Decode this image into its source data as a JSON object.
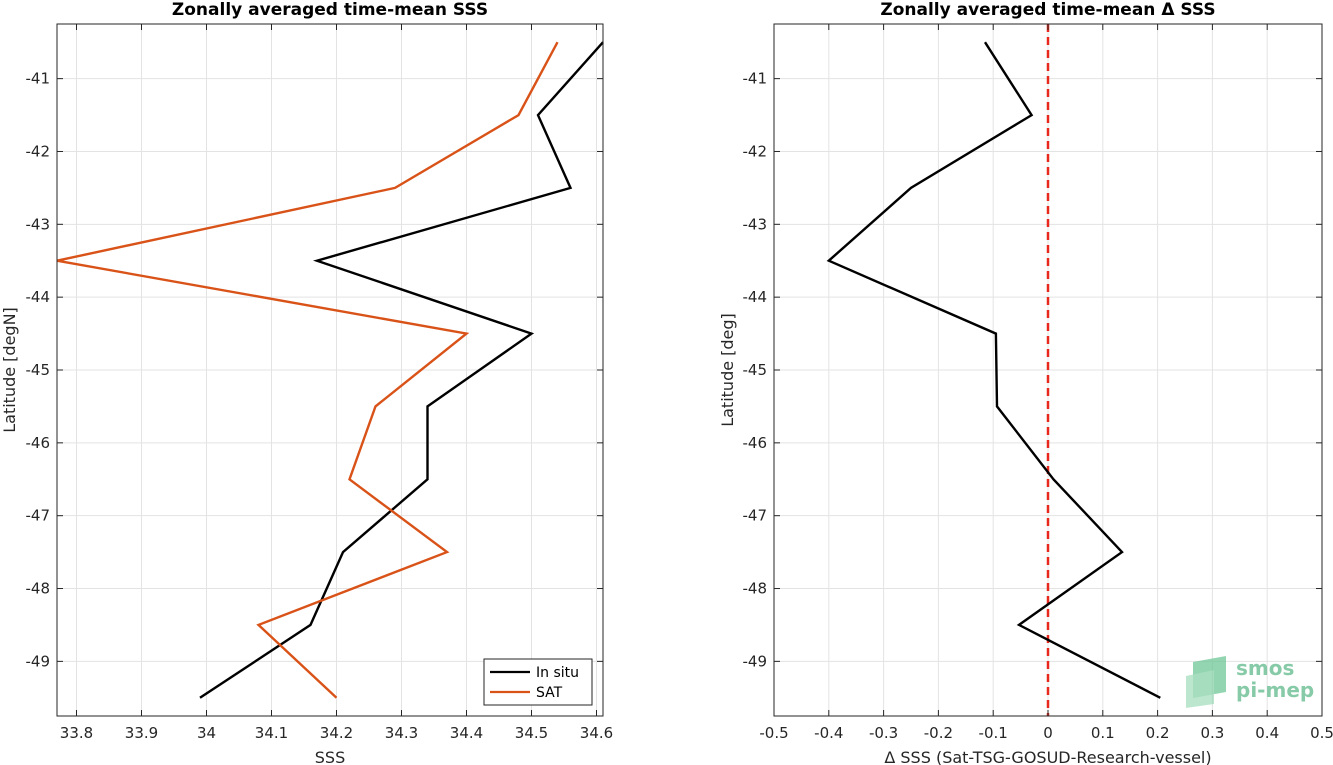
{
  "chart_data": [
    {
      "type": "line",
      "title": "Zonally averaged time-mean SSS",
      "xlabel": "SSS",
      "ylabel": "Latitude [degN]",
      "xlim": [
        33.77,
        34.61
      ],
      "ylim": [
        -49.75,
        -40.25
      ],
      "xticks": [
        "33.8",
        "33.9",
        "34",
        "34.1",
        "34.2",
        "34.3",
        "34.4",
        "34.5",
        "34.6"
      ],
      "xtick_values": [
        33.8,
        33.9,
        34.0,
        34.1,
        34.2,
        34.3,
        34.4,
        34.5,
        34.6
      ],
      "yticks": [
        "-41",
        "-42",
        "-43",
        "-44",
        "-45",
        "-46",
        "-47",
        "-48",
        "-49"
      ],
      "ytick_values": [
        -41,
        -42,
        -43,
        -44,
        -45,
        -46,
        -47,
        -48,
        -49
      ],
      "grid": true,
      "legend_position": "bottom-right",
      "series": [
        {
          "name": "In situ",
          "color": "#000000",
          "points": [
            {
              "x": 34.61,
              "y": -40.5
            },
            {
              "x": 34.51,
              "y": -41.5
            },
            {
              "x": 34.56,
              "y": -42.5
            },
            {
              "x": 34.17,
              "y": -43.5
            },
            {
              "x": 34.5,
              "y": -44.5
            },
            {
              "x": 34.34,
              "y": -45.5
            },
            {
              "x": 34.34,
              "y": -46.5
            },
            {
              "x": 34.21,
              "y": -47.5
            },
            {
              "x": 34.16,
              "y": -48.5
            },
            {
              "x": 33.99,
              "y": -49.5
            }
          ]
        },
        {
          "name": "SAT",
          "color": "#d95319",
          "points": [
            {
              "x": 34.54,
              "y": -40.5
            },
            {
              "x": 34.48,
              "y": -41.5
            },
            {
              "x": 34.29,
              "y": -42.5
            },
            {
              "x": 33.77,
              "y": -43.5
            },
            {
              "x": 34.4,
              "y": -44.5
            },
            {
              "x": 34.26,
              "y": -45.5
            },
            {
              "x": 34.22,
              "y": -46.5
            },
            {
              "x": 34.37,
              "y": -47.5
            },
            {
              "x": 34.08,
              "y": -48.5
            },
            {
              "x": 34.2,
              "y": -49.5
            }
          ]
        }
      ]
    },
    {
      "type": "line",
      "title": "Zonally averaged time-mean Δ SSS",
      "xlabel": "Δ SSS (Sat-TSG-GOSUD-Research-vessel)",
      "ylabel": "Latitude [deg]",
      "xlim": [
        -0.5,
        0.5
      ],
      "ylim": [
        -49.75,
        -40.25
      ],
      "xticks": [
        "-0.5",
        "-0.4",
        "-0.3",
        "-0.2",
        "-0.1",
        "0",
        "0.1",
        "0.2",
        "0.3",
        "0.4",
        "0.5"
      ],
      "xtick_values": [
        -0.5,
        -0.4,
        -0.3,
        -0.2,
        -0.1,
        0,
        0.1,
        0.2,
        0.3,
        0.4,
        0.5
      ],
      "yticks": [
        "-41",
        "-42",
        "-43",
        "-44",
        "-45",
        "-46",
        "-47",
        "-48",
        "-49"
      ],
      "ytick_values": [
        -41,
        -42,
        -43,
        -44,
        -45,
        -46,
        -47,
        -48,
        -49
      ],
      "grid": true,
      "reference_line": {
        "x": 0,
        "color": "#e8281c",
        "style": "dashed"
      },
      "series": [
        {
          "color": "#000000",
          "points": [
            {
              "x": -0.115,
              "y": -40.5
            },
            {
              "x": -0.03,
              "y": -41.5
            },
            {
              "x": -0.25,
              "y": -42.5
            },
            {
              "x": -0.4,
              "y": -43.5
            },
            {
              "x": -0.095,
              "y": -44.5
            },
            {
              "x": -0.093,
              "y": -45.5
            },
            {
              "x": 0.01,
              "y": -46.5
            },
            {
              "x": 0.135,
              "y": -47.5
            },
            {
              "x": -0.053,
              "y": -48.5
            },
            {
              "x": 0.205,
              "y": -49.5
            }
          ]
        }
      ]
    }
  ],
  "watermark": {
    "line1": "smos",
    "line2": "pi-mep",
    "color": "#5fb98a"
  }
}
